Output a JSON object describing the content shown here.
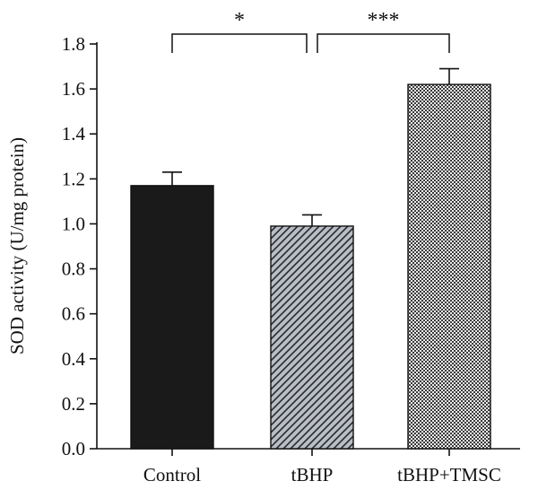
{
  "chart_data": {
    "type": "bar",
    "title": "",
    "xlabel": "",
    "ylabel": "SOD activity (U/mg protein)",
    "ylim": [
      0,
      1.8
    ],
    "yticks": [
      "0.0",
      "0.2",
      "0.4",
      "0.6",
      "0.8",
      "1.0",
      "1.2",
      "1.4",
      "1.6",
      "1.8"
    ],
    "categories": [
      "Control",
      "tBHP",
      "tBHP+TMSC"
    ],
    "values": [
      1.17,
      0.99,
      1.62
    ],
    "errors": [
      0.06,
      0.05,
      0.07
    ],
    "bar_styles": [
      {
        "fill": "solid",
        "color": "#1a1a1a"
      },
      {
        "fill": "diagonal-hatch",
        "color": "#b8bdc6",
        "stroke": "#2a2a2a"
      },
      {
        "fill": "checker",
        "color": "#e6e6e6",
        "stroke": "#2a2a2a"
      }
    ],
    "significance": [
      {
        "from": 0,
        "to": 1,
        "label": "*"
      },
      {
        "from": 1,
        "to": 2,
        "label": "***"
      }
    ],
    "grid": false
  }
}
